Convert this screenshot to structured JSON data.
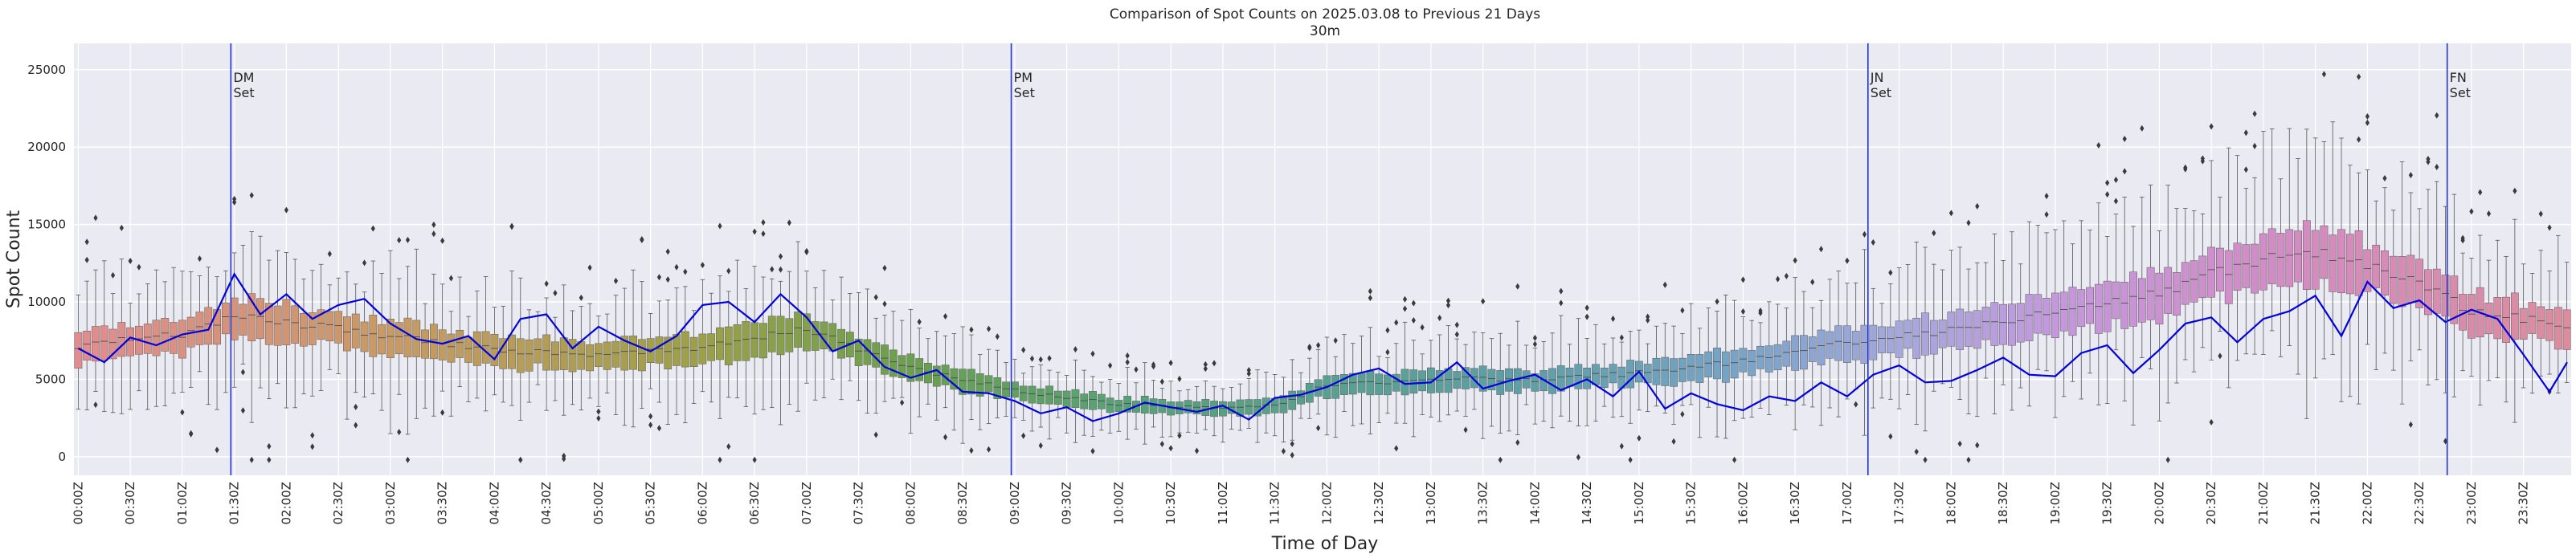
{
  "chart_data": {
    "type": "box",
    "title_line1": "Comparison of Spot Counts on 2025.03.08 to Previous 21 Days",
    "title_line2": "30m",
    "xlabel": "Time of Day",
    "ylabel": "Spot Count",
    "ylim": [
      -1200,
      26700
    ],
    "yticks": [
      0,
      5000,
      10000,
      15000,
      20000,
      25000
    ],
    "ytick_labels": [
      "0",
      "5000",
      "10000",
      "15000",
      "20000",
      "25000"
    ],
    "xtick_labels": [
      "00:00Z",
      "00:30Z",
      "01:00Z",
      "01:30Z",
      "02:00Z",
      "02:30Z",
      "03:00Z",
      "03:30Z",
      "04:00Z",
      "04:30Z",
      "05:00Z",
      "05:30Z",
      "06:00Z",
      "06:30Z",
      "07:00Z",
      "07:30Z",
      "08:00Z",
      "08:30Z",
      "09:00Z",
      "09:30Z",
      "10:00Z",
      "10:30Z",
      "11:00Z",
      "11:30Z",
      "12:00Z",
      "12:30Z",
      "13:00Z",
      "13:30Z",
      "14:00Z",
      "14:30Z",
      "15:00Z",
      "15:30Z",
      "16:00Z",
      "16:30Z",
      "17:00Z",
      "17:30Z",
      "18:00Z",
      "18:30Z",
      "19:00Z",
      "19:30Z",
      "20:00Z",
      "20:30Z",
      "21:00Z",
      "21:30Z",
      "22:00Z",
      "22:30Z",
      "23:00Z",
      "23:30Z"
    ],
    "grid": true,
    "box_count": 288,
    "box_interval_minutes": 5,
    "annotations": [
      {
        "label": "DM",
        "label2": "Set",
        "time": "01:28Z"
      },
      {
        "label": "PM",
        "label2": "Set",
        "time": "08:58Z"
      },
      {
        "label": "JN",
        "label2": "Set",
        "time": "17:12Z"
      },
      {
        "label": "FN",
        "label2": "Set",
        "time": "22:46Z"
      }
    ],
    "median_profile": {
      "hours": [
        0,
        1,
        1.5,
        2,
        3,
        4,
        5,
        6,
        7,
        7.5,
        8,
        9,
        10,
        11,
        11.5,
        12,
        13,
        14,
        15,
        16,
        17,
        18,
        19,
        20,
        20.5,
        21,
        21.5,
        22,
        22.5,
        23,
        24
      ],
      "values": [
        7200,
        7900,
        9000,
        8700,
        7800,
        6900,
        6500,
        7100,
        8200,
        7000,
        5700,
        4300,
        3400,
        3100,
        3300,
        4600,
        5000,
        5000,
        5400,
        6200,
        7400,
        8200,
        9300,
        10500,
        11800,
        12800,
        13300,
        12400,
        11200,
        9400,
        8400
      ]
    },
    "box_colors": {
      "hours": [
        0,
        3,
        6,
        8,
        10,
        12,
        14,
        16,
        17.5,
        19,
        21,
        24
      ],
      "colors": [
        "#e28c90",
        "#c89a64",
        "#9ca048",
        "#6aa04e",
        "#56a276",
        "#58a090",
        "#5f9fa8",
        "#78a4c8",
        "#a6a8dc",
        "#c398dc",
        "#d28cc6",
        "#dc8c9c"
      ]
    },
    "series": [
      {
        "name": "2025.03.08",
        "color": "#0000dd",
        "hours": [
          0,
          0.25,
          0.5,
          0.75,
          1,
          1.25,
          1.5,
          1.75,
          2,
          2.25,
          2.5,
          2.75,
          3,
          3.25,
          3.5,
          3.75,
          4,
          4.25,
          4.5,
          4.75,
          5,
          5.25,
          5.5,
          5.75,
          6,
          6.25,
          6.5,
          6.75,
          7,
          7.25,
          7.5,
          7.75,
          8,
          8.25,
          8.5,
          8.75,
          9,
          9.25,
          9.5,
          9.75,
          10,
          10.25,
          10.5,
          10.75,
          11,
          11.25,
          11.5,
          11.75,
          12,
          12.25,
          12.5,
          12.75,
          13,
          13.25,
          13.5,
          13.75,
          14,
          14.25,
          14.5,
          14.75,
          15,
          15.25,
          15.5,
          15.75,
          16,
          16.25,
          16.5,
          16.75,
          17,
          17.25,
          17.5,
          17.75,
          18,
          18.25,
          18.5,
          18.75,
          19,
          19.25,
          19.5,
          19.75,
          20,
          20.25,
          20.5,
          20.75,
          21,
          21.25,
          21.5,
          21.75,
          22,
          22.25,
          22.5,
          22.75,
          23,
          23.25,
          23.5,
          23.75,
          24
        ],
        "values": [
          7000,
          6100,
          7700,
          7200,
          7900,
          8200,
          11800,
          9200,
          10500,
          8900,
          9800,
          10200,
          8600,
          7600,
          7300,
          7800,
          6300,
          8900,
          9200,
          7000,
          8400,
          7500,
          6800,
          7800,
          9800,
          10000,
          8700,
          10500,
          9000,
          6800,
          7500,
          5800,
          5100,
          5600,
          4200,
          4100,
          3600,
          2800,
          3200,
          2300,
          2800,
          3500,
          3200,
          2900,
          3300,
          2400,
          3800,
          4000,
          4500,
          5300,
          5700,
          4700,
          4800,
          6100,
          4400,
          4900,
          5300,
          4300,
          5000,
          3900,
          5500,
          3100,
          4100,
          3400,
          3000,
          3900,
          3600,
          4800,
          3900,
          5300,
          5900,
          4800,
          4900,
          5600,
          6400,
          5300,
          5200,
          6700,
          7200,
          5400,
          6900,
          8600,
          9000,
          7400,
          8900,
          9400,
          10400,
          7800,
          11300,
          9600,
          10100,
          8700,
          9500,
          8900,
          6600,
          4200,
          6100
        ]
      }
    ]
  }
}
